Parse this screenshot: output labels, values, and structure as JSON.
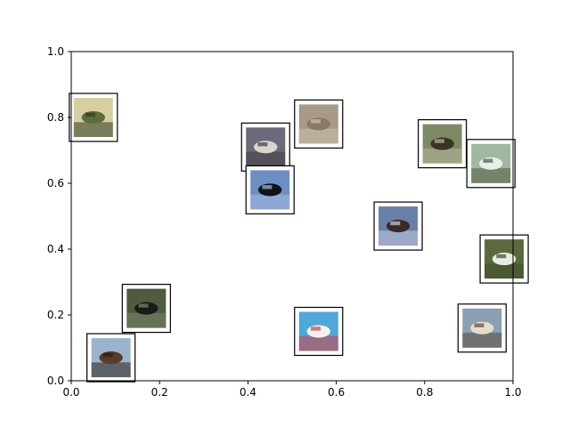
{
  "chart_data": {
    "type": "scatter",
    "title": "",
    "xlabel": "",
    "ylabel": "",
    "xlim": [
      0.0,
      1.0
    ],
    "ylim": [
      0.0,
      1.0
    ],
    "x_ticks": [
      "0.0",
      "0.2",
      "0.4",
      "0.6",
      "0.8",
      "1.0"
    ],
    "y_ticks": [
      "0.0",
      "0.2",
      "0.4",
      "0.6",
      "0.8",
      "1.0"
    ],
    "grid": false,
    "legend": "none",
    "marker_style": "image thumbnail with white padding and black border",
    "points": [
      {
        "x": 0.05,
        "y": 0.8,
        "icon": "automobile-thumbnail",
        "colors": [
          "#d8cfa0",
          "#5b6e3a",
          "#2d3a22"
        ]
      },
      {
        "x": 0.44,
        "y": 0.71,
        "icon": "ship-thumbnail",
        "colors": [
          "#6a6a78",
          "#d9d4cc",
          "#3f3c40"
        ]
      },
      {
        "x": 0.56,
        "y": 0.78,
        "icon": "frog-thumbnail",
        "colors": [
          "#a89a86",
          "#8a7a64",
          "#c9bfae"
        ]
      },
      {
        "x": 0.45,
        "y": 0.58,
        "icon": "bird-thumbnail",
        "colors": [
          "#6d8fc4",
          "#101216",
          "#a9bde0"
        ]
      },
      {
        "x": 0.84,
        "y": 0.72,
        "icon": "deer-thumbnail",
        "colors": [
          "#7e8a66",
          "#3b3424",
          "#b7b99a"
        ]
      },
      {
        "x": 0.95,
        "y": 0.66,
        "icon": "airplane-thumbnail",
        "colors": [
          "#9fb8a0",
          "#e9eee8",
          "#4f5a40"
        ]
      },
      {
        "x": 0.74,
        "y": 0.47,
        "icon": "airplane-thumbnail",
        "colors": [
          "#6a7fa8",
          "#3b2a28",
          "#c7cde0"
        ]
      },
      {
        "x": 0.98,
        "y": 0.37,
        "icon": "airplane-thumbnail",
        "colors": [
          "#5a6a3c",
          "#e8ece4",
          "#3c4a2a"
        ]
      },
      {
        "x": 0.17,
        "y": 0.22,
        "icon": "frog-thumbnail",
        "colors": [
          "#4f5b3e",
          "#1a1a1a",
          "#7a866a"
        ]
      },
      {
        "x": 0.56,
        "y": 0.15,
        "icon": "ship-thumbnail",
        "colors": [
          "#4ea8d8",
          "#f2f2f2",
          "#d93a3a"
        ]
      },
      {
        "x": 0.93,
        "y": 0.16,
        "icon": "ship-thumbnail",
        "colors": [
          "#8aa0b4",
          "#e8dccc",
          "#5a4a3a"
        ]
      },
      {
        "x": 0.09,
        "y": 0.07,
        "icon": "ship-thumbnail",
        "colors": [
          "#9ab4cc",
          "#5a3a2a",
          "#2a1c14"
        ]
      }
    ]
  }
}
